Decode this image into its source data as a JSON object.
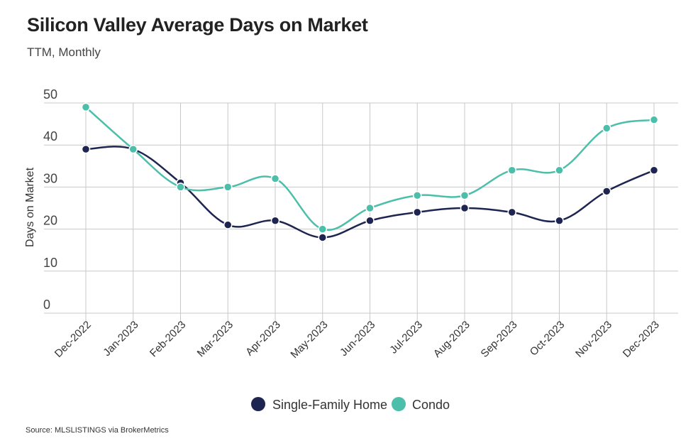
{
  "header": {
    "title": "Silicon Valley Average Days on Market",
    "subtitle": "TTM, Monthly"
  },
  "footer": {
    "source": "Source:  MLSLISTINGS via BrokerMetrics"
  },
  "colors": {
    "single_family": "#1e2550",
    "condo": "#4cbfaa",
    "grid": "#c8c8c8"
  },
  "chart_data": {
    "type": "line",
    "title": "Silicon Valley Average Days on Market",
    "subtitle": "TTM, Monthly",
    "xlabel": "",
    "ylabel": "Days on Market",
    "ylim": [
      0,
      50
    ],
    "yticks": [
      0,
      10,
      20,
      30,
      40,
      50
    ],
    "grid": true,
    "legend_position": "bottom",
    "categories": [
      "Dec-2022",
      "Jan-2023",
      "Feb-2023",
      "Mar-2023",
      "Apr-2023",
      "May-2023",
      "Jun-2023",
      "Jul-2023",
      "Aug-2023",
      "Sep-2023",
      "Oct-2023",
      "Nov-2023",
      "Dec-2023"
    ],
    "series": [
      {
        "name": "Single-Family Home",
        "color": "#1e2550",
        "values": [
          39,
          39,
          31,
          21,
          22,
          18,
          22,
          24,
          25,
          24,
          22,
          29,
          34
        ]
      },
      {
        "name": "Condo",
        "color": "#4cbfaa",
        "values": [
          49,
          39,
          30,
          30,
          32,
          20,
          25,
          28,
          28,
          34,
          34,
          44,
          46
        ]
      }
    ]
  }
}
